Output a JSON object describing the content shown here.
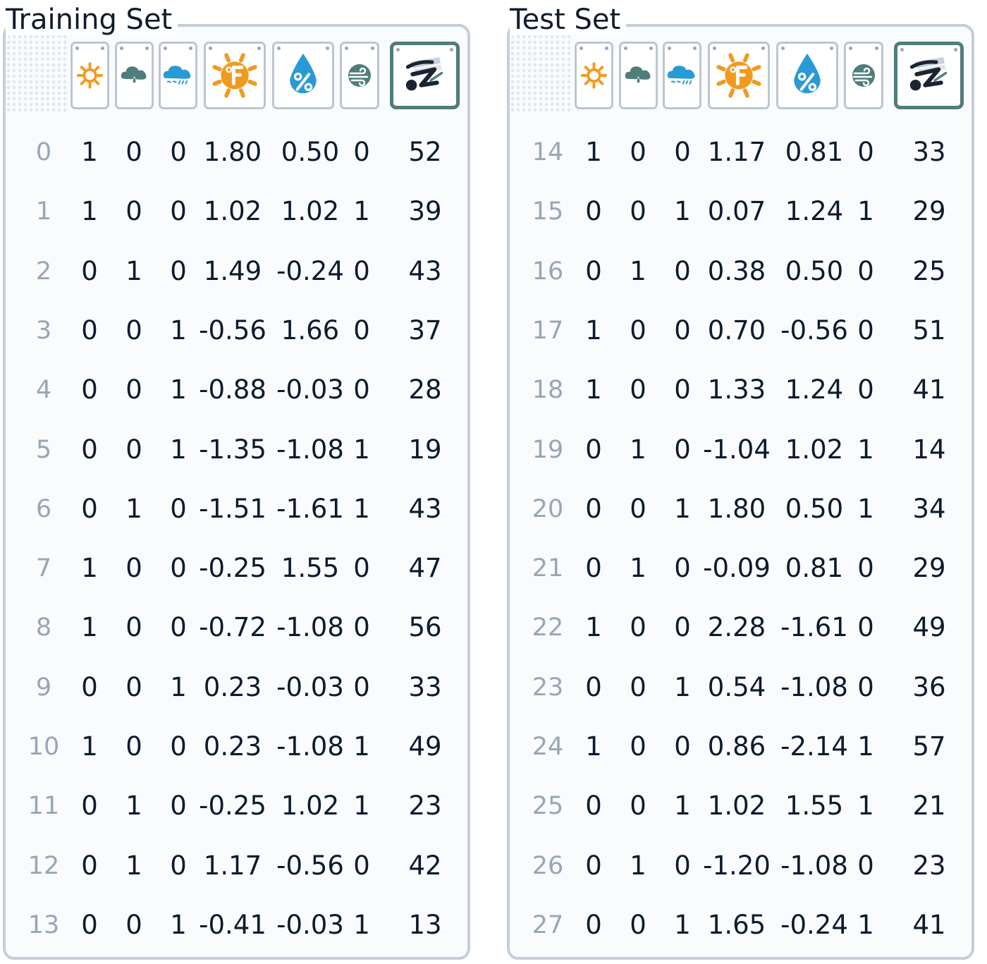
{
  "panels": [
    {
      "id": "train",
      "title": "Training Set",
      "rows": [
        {
          "idx": "0",
          "sunny": "1",
          "cloudy": "0",
          "rainy": "0",
          "temp": "1.80",
          "humidity": "0.50",
          "windy": "0",
          "target": "52"
        },
        {
          "idx": "1",
          "sunny": "1",
          "cloudy": "0",
          "rainy": "0",
          "temp": "1.02",
          "humidity": "1.02",
          "windy": "1",
          "target": "39"
        },
        {
          "idx": "2",
          "sunny": "0",
          "cloudy": "1",
          "rainy": "0",
          "temp": "1.49",
          "humidity": "-0.24",
          "windy": "0",
          "target": "43"
        },
        {
          "idx": "3",
          "sunny": "0",
          "cloudy": "0",
          "rainy": "1",
          "temp": "-0.56",
          "humidity": "1.66",
          "windy": "0",
          "target": "37"
        },
        {
          "idx": "4",
          "sunny": "0",
          "cloudy": "0",
          "rainy": "1",
          "temp": "-0.88",
          "humidity": "-0.03",
          "windy": "0",
          "target": "28"
        },
        {
          "idx": "5",
          "sunny": "0",
          "cloudy": "0",
          "rainy": "1",
          "temp": "-1.35",
          "humidity": "-1.08",
          "windy": "1",
          "target": "19"
        },
        {
          "idx": "6",
          "sunny": "0",
          "cloudy": "1",
          "rainy": "0",
          "temp": "-1.51",
          "humidity": "-1.61",
          "windy": "1",
          "target": "43"
        },
        {
          "idx": "7",
          "sunny": "1",
          "cloudy": "0",
          "rainy": "0",
          "temp": "-0.25",
          "humidity": "1.55",
          "windy": "0",
          "target": "47"
        },
        {
          "idx": "8",
          "sunny": "1",
          "cloudy": "0",
          "rainy": "0",
          "temp": "-0.72",
          "humidity": "-1.08",
          "windy": "0",
          "target": "56"
        },
        {
          "idx": "9",
          "sunny": "0",
          "cloudy": "0",
          "rainy": "1",
          "temp": "0.23",
          "humidity": "-0.03",
          "windy": "0",
          "target": "33"
        },
        {
          "idx": "10",
          "sunny": "1",
          "cloudy": "0",
          "rainy": "0",
          "temp": "0.23",
          "humidity": "-1.08",
          "windy": "1",
          "target": "49"
        },
        {
          "idx": "11",
          "sunny": "0",
          "cloudy": "1",
          "rainy": "0",
          "temp": "-0.25",
          "humidity": "1.02",
          "windy": "1",
          "target": "23"
        },
        {
          "idx": "12",
          "sunny": "0",
          "cloudy": "1",
          "rainy": "0",
          "temp": "1.17",
          "humidity": "-0.56",
          "windy": "0",
          "target": "42"
        },
        {
          "idx": "13",
          "sunny": "0",
          "cloudy": "0",
          "rainy": "1",
          "temp": "-0.41",
          "humidity": "-0.03",
          "windy": "1",
          "target": "13"
        }
      ]
    },
    {
      "id": "test",
      "title": "Test Set",
      "rows": [
        {
          "idx": "14",
          "sunny": "1",
          "cloudy": "0",
          "rainy": "0",
          "temp": "1.17",
          "humidity": "0.81",
          "windy": "0",
          "target": "33"
        },
        {
          "idx": "15",
          "sunny": "0",
          "cloudy": "0",
          "rainy": "1",
          "temp": "0.07",
          "humidity": "1.24",
          "windy": "1",
          "target": "29"
        },
        {
          "idx": "16",
          "sunny": "0",
          "cloudy": "1",
          "rainy": "0",
          "temp": "0.38",
          "humidity": "0.50",
          "windy": "0",
          "target": "25"
        },
        {
          "idx": "17",
          "sunny": "1",
          "cloudy": "0",
          "rainy": "0",
          "temp": "0.70",
          "humidity": "-0.56",
          "windy": "0",
          "target": "51"
        },
        {
          "idx": "18",
          "sunny": "1",
          "cloudy": "0",
          "rainy": "0",
          "temp": "1.33",
          "humidity": "1.24",
          "windy": "0",
          "target": "41"
        },
        {
          "idx": "19",
          "sunny": "0",
          "cloudy": "1",
          "rainy": "0",
          "temp": "-1.04",
          "humidity": "1.02",
          "windy": "1",
          "target": "14"
        },
        {
          "idx": "20",
          "sunny": "0",
          "cloudy": "0",
          "rainy": "1",
          "temp": "1.80",
          "humidity": "0.50",
          "windy": "1",
          "target": "34"
        },
        {
          "idx": "21",
          "sunny": "0",
          "cloudy": "1",
          "rainy": "0",
          "temp": "-0.09",
          "humidity": "0.81",
          "windy": "0",
          "target": "29"
        },
        {
          "idx": "22",
          "sunny": "1",
          "cloudy": "0",
          "rainy": "0",
          "temp": "2.28",
          "humidity": "-1.61",
          "windy": "0",
          "target": "49"
        },
        {
          "idx": "23",
          "sunny": "0",
          "cloudy": "0",
          "rainy": "1",
          "temp": "0.54",
          "humidity": "-1.08",
          "windy": "0",
          "target": "36"
        },
        {
          "idx": "24",
          "sunny": "1",
          "cloudy": "0",
          "rainy": "0",
          "temp": "0.86",
          "humidity": "-2.14",
          "windy": "1",
          "target": "57"
        },
        {
          "idx": "25",
          "sunny": "0",
          "cloudy": "0",
          "rainy": "1",
          "temp": "1.02",
          "humidity": "1.55",
          "windy": "1",
          "target": "21"
        },
        {
          "idx": "26",
          "sunny": "0",
          "cloudy": "1",
          "rainy": "0",
          "temp": "-1.20",
          "humidity": "-1.08",
          "windy": "0",
          "target": "23"
        },
        {
          "idx": "27",
          "sunny": "0",
          "cloudy": "0",
          "rainy": "1",
          "temp": "1.65",
          "humidity": "-0.24",
          "windy": "1",
          "target": "41"
        }
      ]
    }
  ],
  "columns": [
    {
      "key": "sunny",
      "icon": "sun-icon"
    },
    {
      "key": "cloudy",
      "icon": "cloud-rain-drop-icon"
    },
    {
      "key": "rainy",
      "icon": "rain-cloud-icon"
    },
    {
      "key": "temp",
      "icon": "temperature-fahrenheit-icon"
    },
    {
      "key": "humidity",
      "icon": "humidity-drop-icon"
    },
    {
      "key": "windy",
      "icon": "wind-icon"
    },
    {
      "key": "target",
      "icon": "golf-player-icon"
    }
  ],
  "colors": {
    "sun": "#f29a1f",
    "cloud_teal": "#4f7d7b",
    "rain_blue": "#2a9ad6",
    "wind_teal": "#4f7d7b",
    "border": "#c5ced9",
    "index_text": "#98a6b6",
    "value_text": "#0d1b2e"
  }
}
